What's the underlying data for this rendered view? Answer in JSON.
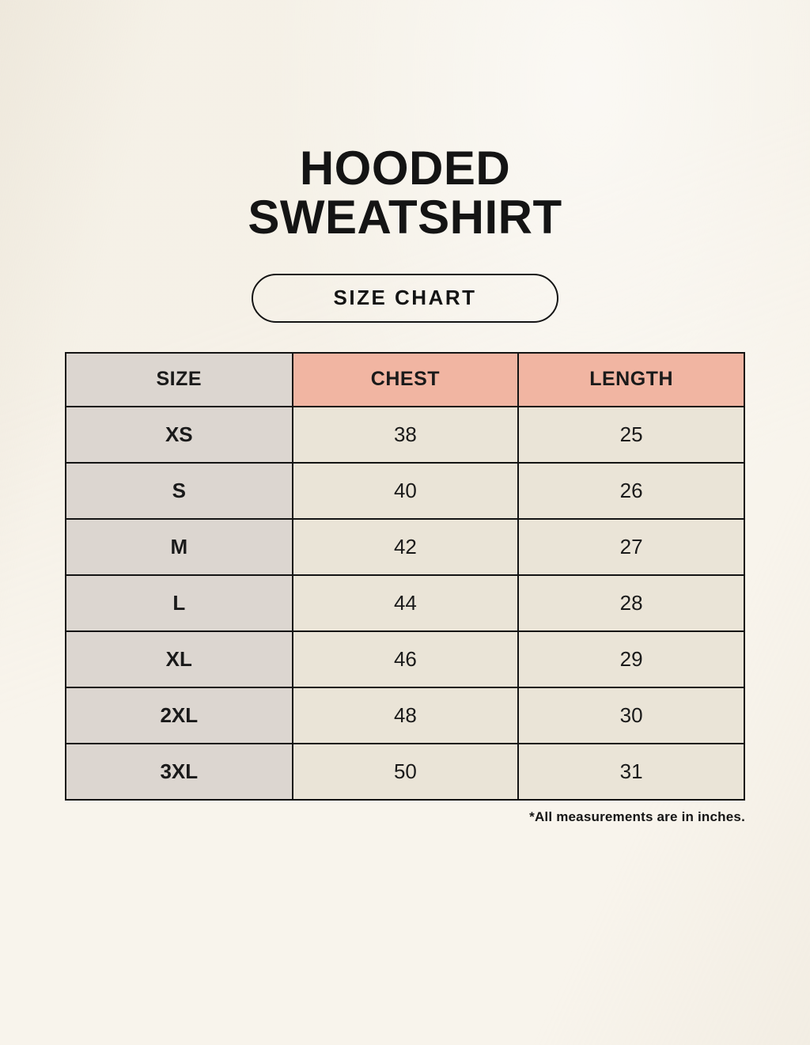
{
  "header": {
    "title_line1": "HOODED",
    "title_line2": "SWEATSHIRT",
    "size_chart_button": "SIZE CHART"
  },
  "footnote": "*All measurements are in inches.",
  "colors": {
    "page_background": "#f8f4ec",
    "header_accent": "#f1b5a2",
    "size_column_bg": "#dcd6d0",
    "data_cell_bg": "#eae4d7",
    "border": "#141414",
    "text": "#1a1a1a"
  },
  "chart_data": {
    "type": "table",
    "title": "HOODED SWEATSHIRT",
    "subtitle": "SIZE CHART",
    "units": "inches",
    "columns": [
      "SIZE",
      "CHEST",
      "LENGTH"
    ],
    "rows": [
      [
        "XS",
        "38",
        "25"
      ],
      [
        "S",
        "40",
        "26"
      ],
      [
        "M",
        "42",
        "27"
      ],
      [
        "L",
        "44",
        "28"
      ],
      [
        "XL",
        "46",
        "29"
      ],
      [
        "2XL",
        "48",
        "30"
      ],
      [
        "3XL",
        "50",
        "31"
      ]
    ]
  }
}
